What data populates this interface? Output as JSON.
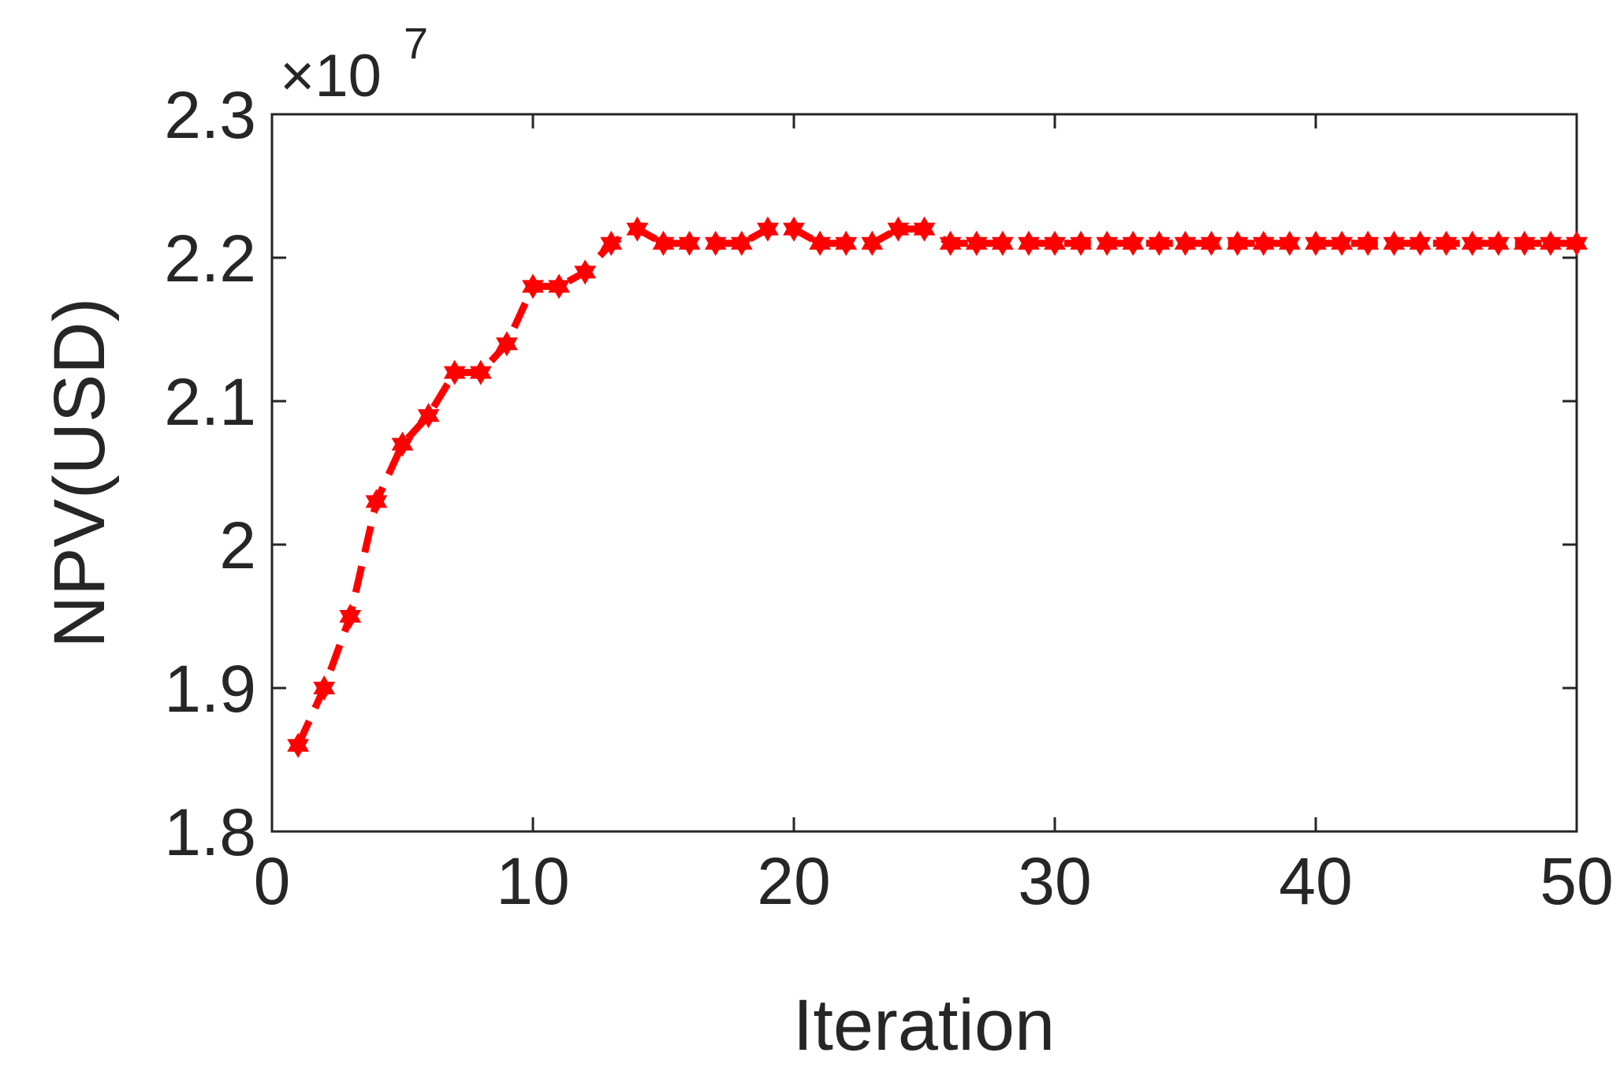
{
  "chart_data": {
    "type": "line",
    "xlabel": "Iteration",
    "ylabel": "NPV(USD)",
    "y_multiplier": "×10",
    "y_multiplier_exponent": "7",
    "xlim": [
      0,
      50
    ],
    "ylim": [
      1.8,
      2.3
    ],
    "x_ticks": [
      "0",
      "10",
      "20",
      "30",
      "40",
      "50"
    ],
    "y_ticks": [
      "1.8",
      "1.9",
      "2",
      "2.1",
      "2.2",
      "2.3"
    ],
    "grid": false,
    "line_style": "dashed",
    "marker": "hexagram",
    "series": [
      {
        "color": "#ff0000",
        "x": [
          1,
          2,
          3,
          4,
          5,
          6,
          7,
          8,
          9,
          10,
          11,
          12,
          13,
          14,
          15,
          16,
          17,
          18,
          19,
          20,
          21,
          22,
          23,
          24,
          25,
          26,
          27,
          28,
          29,
          30,
          31,
          32,
          33,
          34,
          35,
          36,
          37,
          38,
          39,
          40,
          41,
          42,
          43,
          44,
          45,
          46,
          47,
          48,
          49,
          50
        ],
        "values": [
          1.86,
          1.9,
          1.95,
          2.03,
          2.07,
          2.09,
          2.12,
          2.12,
          2.14,
          2.18,
          2.18,
          2.19,
          2.21,
          2.22,
          2.21,
          2.21,
          2.21,
          2.21,
          2.22,
          2.22,
          2.21,
          2.21,
          2.21,
          2.22,
          2.22,
          2.21,
          2.21,
          2.21,
          2.21,
          2.21,
          2.21,
          2.21,
          2.21,
          2.21,
          2.21,
          2.21,
          2.21,
          2.21,
          2.21,
          2.21,
          2.21,
          2.21,
          2.21,
          2.21,
          2.21,
          2.21,
          2.21,
          2.21,
          2.21,
          2.21
        ]
      }
    ]
  }
}
